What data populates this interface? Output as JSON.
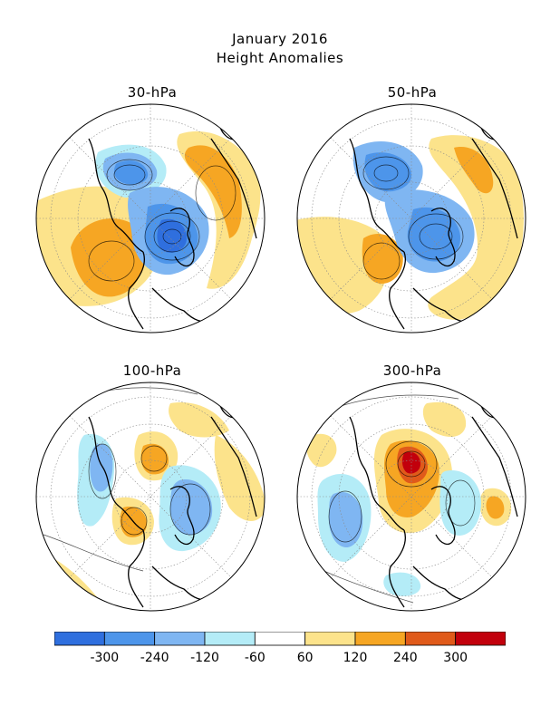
{
  "title": "January 2016",
  "subtitle": "Height Anomalies",
  "panels": [
    {
      "label": "30-hPa",
      "blue_cores": 3,
      "orange_cores": 3
    },
    {
      "label": "50-hPa",
      "blue_cores": 2,
      "orange_cores": 2
    },
    {
      "label": "100-hPa",
      "blue_cores": 3,
      "orange_cores": 3
    },
    {
      "label": "300-hPa",
      "blue_cores": 3,
      "orange_cores": 3
    }
  ],
  "legend": {
    "colors": [
      "#2f6fde",
      "#4d95ea",
      "#7fb6f2",
      "#b4ecf7",
      "#ffffff",
      "#fce38b",
      "#f6a623",
      "#e05a1a",
      "#c2000c"
    ],
    "labels": [
      "-300",
      "-240",
      "-120",
      "-60",
      "60",
      "120",
      "240",
      "300"
    ]
  },
  "map_colors": {
    "ocean_bg": "#ffffff",
    "coast": "#000000",
    "grid": "#8a8a8a"
  }
}
